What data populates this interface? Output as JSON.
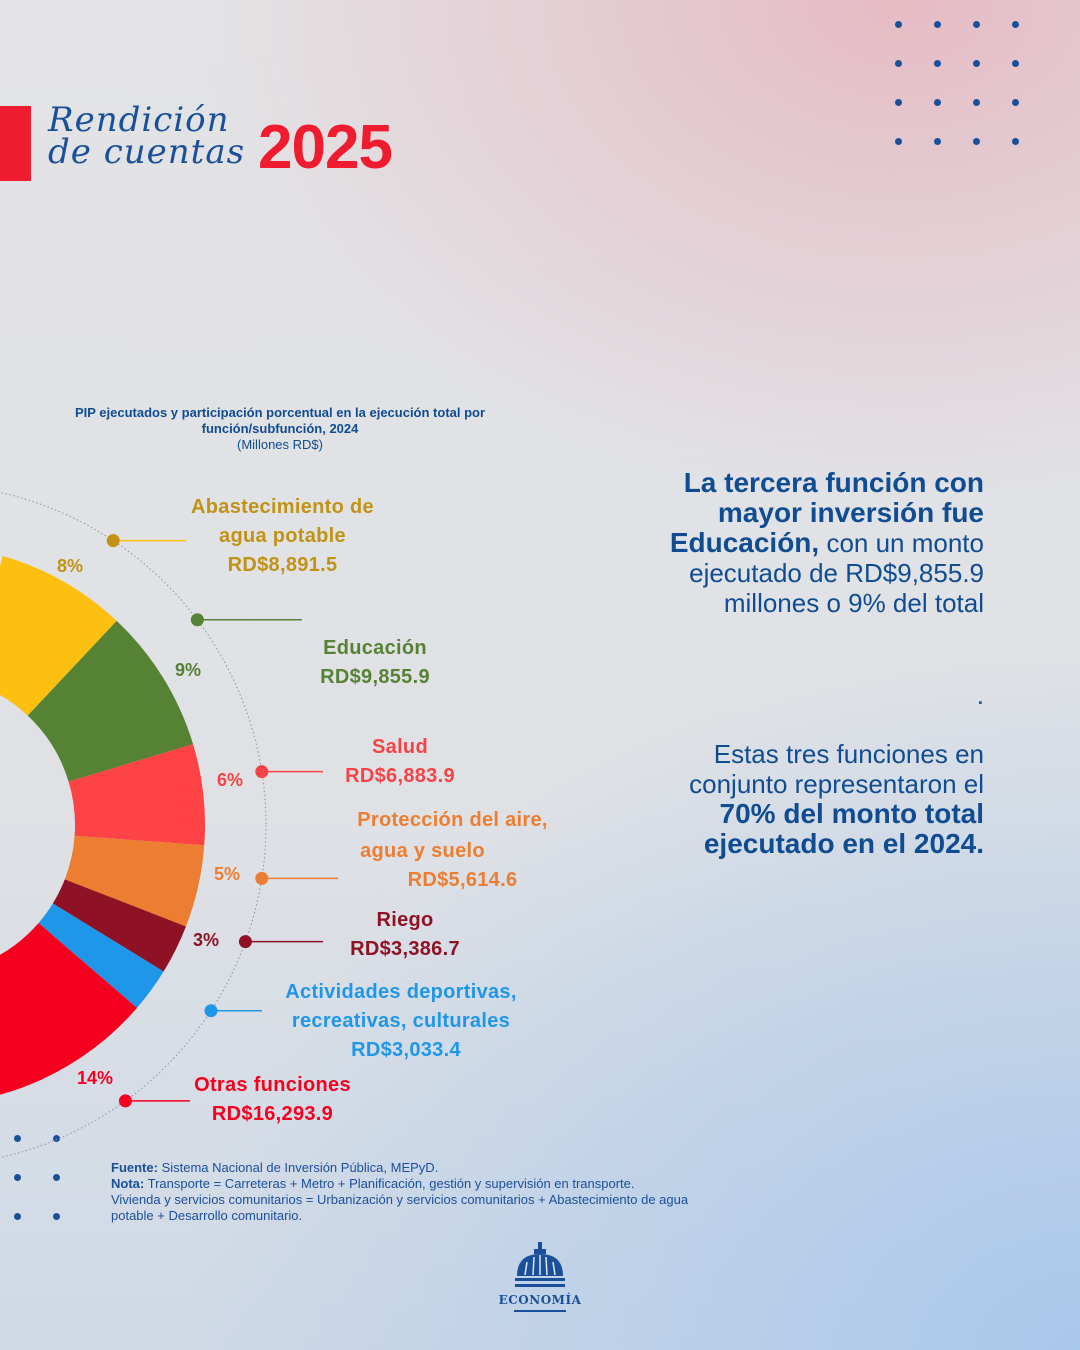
{
  "header": {
    "script_line1": "Rendición",
    "script_line2": "de cuentas",
    "year": "2025"
  },
  "chart_data": {
    "type": "pie",
    "title": "PIP ejecutados y participación porcentual en la ejecución total por función/subfunción, 2024",
    "subtitle": "(Millones RD$)",
    "categories": [
      "Abastecimiento de agua potable",
      "Educación",
      "Salud",
      "Protección del aire, agua y suelo",
      "Riego",
      "Actividades deportivas, recreativas, culturales",
      "Otras funciones"
    ],
    "values": [
      8891.5,
      9855.9,
      6883.9,
      5614.6,
      3386.7,
      3033.4,
      16293.9
    ],
    "percent_labels": [
      "8%",
      "9%",
      "6%",
      "5%",
      "3%",
      "",
      "14%"
    ],
    "value_labels": [
      "RD$8,891.5",
      "RD$9,855.9",
      "RD$6,883.9",
      "RD$5,614.6",
      "RD$3,386.7",
      "RD$3,033.4",
      "RD$16,293.9"
    ],
    "colors": [
      "#fdbf10",
      "#568234",
      "#fd4345",
      "#ed7d31",
      "#8e1224",
      "#1f97e8",
      "#f5001f"
    ],
    "label_colors": [
      "#c19315",
      "#568234",
      "#f54446",
      "#ed7d31",
      "#8e1224",
      "#1f97e8",
      "#f5001f"
    ]
  },
  "labels": {
    "abast_l1": "Abastecimiento de",
    "abast_l2": "agua potable",
    "edu": "Educación",
    "salud": "Salud",
    "prot_l1": "Protección del aire,",
    "prot_l2": "agua y suelo",
    "riego": "Riego",
    "act_l1": "Actividades deportivas,",
    "act_l2": "recreativas, culturales",
    "otras": "Otras funciones"
  },
  "right": {
    "p1_bold": "La tercera función con mayor inversión fue",
    "p1_bold2": "Educación,",
    "p1_rest1": "con un monto",
    "p1_rest2": "ejecutado de RD$9,855.9",
    "p1_rest3": "millones o 9% del total",
    "dot": ".",
    "p2_l1": "Estas tres funciones en",
    "p2_l2": "conjunto representaron el",
    "p2_b1": "70% del monto total",
    "p2_b2": "ejecutado en el 2024."
  },
  "footer": {
    "fuente_label": "Fuente:",
    "fuente": "Sistema Nacional de Inversión Pública, MEPyD.",
    "nota_label": "Nota:",
    "nota": "Transporte = Carreteras + Metro + Planificación, gestión y supervisión en transporte.",
    "nota2": "Vivienda y servicios comunitarios = Urbanización y servicios comunitarios + Abastecimiento de agua",
    "nota3": "potable + Desarrollo comunitario.",
    "logo": "ECONOMÍA"
  }
}
